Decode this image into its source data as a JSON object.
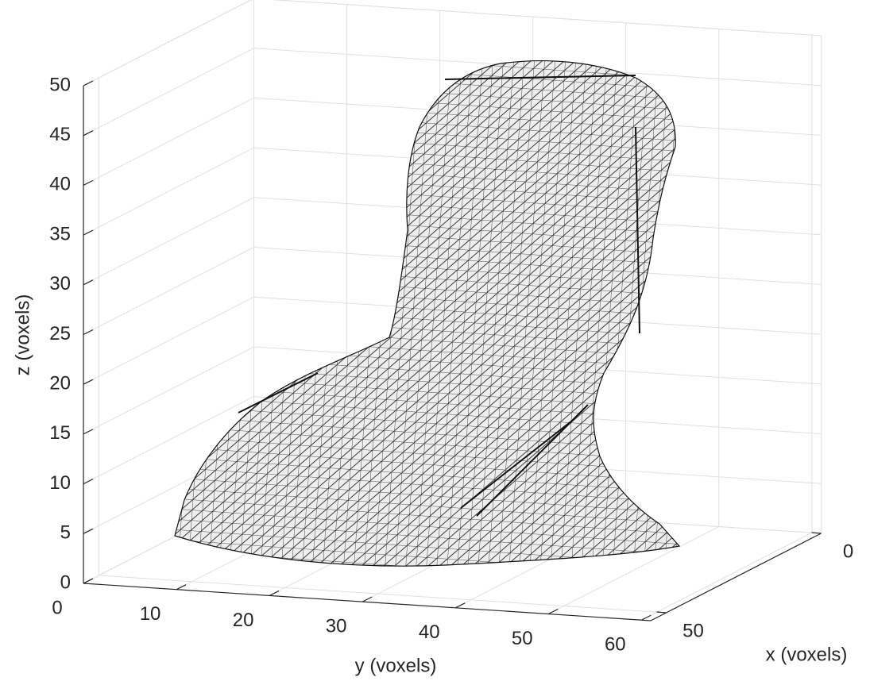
{
  "chart_data": {
    "type": "mesh3d",
    "xlabel": "x (voxels)",
    "ylabel": "y (voxels)",
    "zlabel": "z (voxels)",
    "xlim": [
      0,
      55
    ],
    "xticks": [
      0,
      50
    ],
    "ylim": [
      0,
      61
    ],
    "yticks": [
      0,
      10,
      20,
      30,
      40,
      50,
      60
    ],
    "zlim": [
      0,
      50
    ],
    "zticks": [
      0,
      5,
      10,
      15,
      20,
      25,
      30,
      35,
      40,
      45,
      50
    ],
    "grid": true,
    "color": "#eeeeee"
  }
}
